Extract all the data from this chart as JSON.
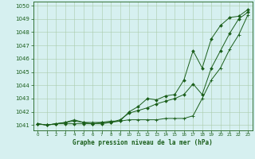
{
  "title": "",
  "xlabel": "Graphe pression niveau de la mer (hPa)",
  "background_color": "#d6f0f0",
  "plot_bg_color": "#d6f0f0",
  "grid_color": "#aaccaa",
  "line_color": "#1a5e1a",
  "xlim_min": -0.5,
  "xlim_max": 23.5,
  "ylim_min": 1040.6,
  "ylim_max": 1050.3,
  "yticks": [
    1041,
    1042,
    1043,
    1044,
    1045,
    1046,
    1047,
    1048,
    1049,
    1050
  ],
  "xticks": [
    0,
    1,
    2,
    3,
    4,
    5,
    6,
    7,
    8,
    9,
    10,
    11,
    12,
    13,
    14,
    15,
    16,
    17,
    18,
    19,
    20,
    21,
    22,
    23
  ],
  "hours": [
    0,
    1,
    2,
    3,
    4,
    5,
    6,
    7,
    8,
    9,
    10,
    11,
    12,
    13,
    14,
    15,
    16,
    17,
    18,
    19,
    20,
    21,
    22,
    23
  ],
  "line1": [
    1041.1,
    1041.0,
    1041.1,
    1041.2,
    1041.3,
    1041.2,
    1041.1,
    1041.2,
    1041.2,
    1041.4,
    1041.9,
    1042.1,
    1042.3,
    1042.6,
    1042.8,
    1043.0,
    1043.3,
    1044.1,
    1043.3,
    1045.3,
    1046.6,
    1047.9,
    1049.0,
    1049.5
  ],
  "line2": [
    1041.1,
    1041.0,
    1041.1,
    1041.1,
    1041.1,
    1041.1,
    1041.1,
    1041.1,
    1041.2,
    1041.3,
    1042.0,
    1042.4,
    1043.0,
    1042.9,
    1043.2,
    1043.3,
    1044.4,
    1046.6,
    1045.3,
    1047.5,
    1048.5,
    1049.1,
    1049.2,
    1049.7
  ],
  "line3": [
    1041.1,
    1041.0,
    1041.1,
    1041.2,
    1041.4,
    1041.2,
    1041.2,
    1041.2,
    1041.3,
    1041.3,
    1041.4,
    1041.4,
    1041.4,
    1041.4,
    1041.5,
    1041.5,
    1041.5,
    1041.7,
    1043.0,
    1044.4,
    1045.3,
    1046.7,
    1047.8,
    1049.3
  ]
}
